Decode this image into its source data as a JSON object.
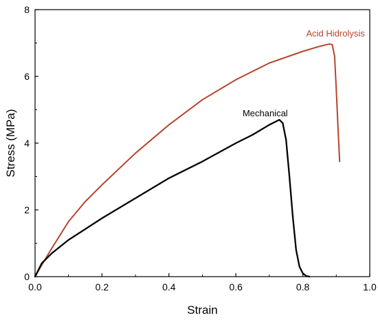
{
  "chart_data": {
    "type": "line",
    "title": "",
    "xlabel": "Strain",
    "ylabel": "Stress (MPa)",
    "xlim": [
      0.0,
      1.0
    ],
    "ylim": [
      0,
      8
    ],
    "xticks": [
      0.0,
      0.2,
      0.4,
      0.6,
      0.8,
      1.0
    ],
    "xtick_labels": [
      "0.0",
      "0.2",
      "0.4",
      "0.6",
      "0.8",
      "1.0"
    ],
    "yticks": [
      0,
      2,
      4,
      6,
      8
    ],
    "ytick_labels": [
      "0",
      "2",
      "4",
      "6",
      "8"
    ],
    "grid": false,
    "legend": "none",
    "series": [
      {
        "name": "Acid Hidrolysis",
        "color": "#b5432c",
        "x": [
          0.0,
          0.02,
          0.05,
          0.1,
          0.15,
          0.2,
          0.3,
          0.4,
          0.5,
          0.6,
          0.7,
          0.8,
          0.85,
          0.87,
          0.88,
          0.888,
          0.895,
          0.9,
          0.905,
          0.91
        ],
        "y": [
          0.0,
          0.35,
          0.85,
          1.65,
          2.25,
          2.75,
          3.7,
          4.55,
          5.3,
          5.9,
          6.4,
          6.75,
          6.9,
          6.95,
          6.97,
          6.95,
          6.6,
          5.6,
          4.5,
          3.45
        ]
      },
      {
        "name": "Mechanical",
        "color": "#000000",
        "x": [
          0.0,
          0.02,
          0.05,
          0.1,
          0.2,
          0.3,
          0.4,
          0.5,
          0.6,
          0.65,
          0.7,
          0.72,
          0.73,
          0.74,
          0.75,
          0.76,
          0.77,
          0.78,
          0.79,
          0.8,
          0.81,
          0.82
        ],
        "y": [
          0.0,
          0.4,
          0.7,
          1.1,
          1.75,
          2.35,
          2.95,
          3.45,
          4.0,
          4.25,
          4.55,
          4.65,
          4.7,
          4.6,
          4.1,
          3.0,
          1.8,
          0.8,
          0.3,
          0.1,
          0.02,
          0.0
        ]
      }
    ],
    "annotations": [
      {
        "text": "Acid Hidrolysis",
        "x": 0.81,
        "y": 7.2,
        "color": "#b5432c"
      },
      {
        "text": "Mechanical",
        "x": 0.62,
        "y": 4.8,
        "color": "#000000"
      }
    ]
  }
}
